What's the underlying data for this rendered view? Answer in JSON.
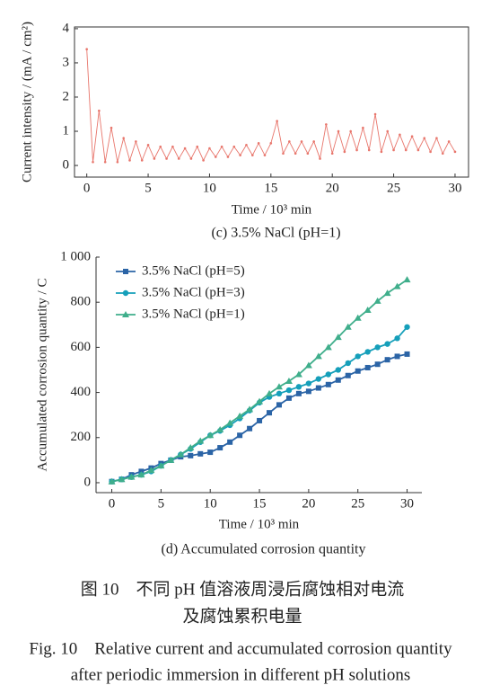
{
  "chart_data": [
    {
      "type": "scatter-line",
      "x_label": "Time / 10³ min",
      "y_label": "Current intensity / (mA / cm²)",
      "caption": "(c) 3.5% NaCl (pH=1)",
      "xlim": [
        -1,
        31.1
      ],
      "ylim": [
        -0.34,
        4.05
      ],
      "xticks": [
        0,
        5,
        10,
        15,
        20,
        25,
        30
      ],
      "yticks": [
        0,
        1,
        2,
        3,
        4
      ],
      "box": true,
      "series": [
        {
          "color": "#e8766c",
          "x": [
            0,
            0.5,
            1,
            1.5,
            2,
            2.5,
            3,
            3.5,
            4,
            4.5,
            5,
            5.5,
            6,
            6.5,
            7,
            7.5,
            8,
            8.5,
            9,
            9.5,
            10,
            10.5,
            11,
            11.5,
            12,
            12.5,
            13,
            13.5,
            14,
            14.5,
            15,
            15.5,
            16,
            16.5,
            17,
            17.5,
            18,
            18.5,
            19,
            19.5,
            20,
            20.5,
            21,
            21.5,
            22,
            22.5,
            23,
            23.5,
            24,
            24.5,
            25,
            25.5,
            26,
            26.5,
            27,
            27.5,
            28,
            28.5,
            29,
            29.5,
            30
          ],
          "values": [
            3.4,
            0.1,
            1.6,
            0.1,
            1.1,
            0.1,
            0.8,
            0.15,
            0.7,
            0.15,
            0.6,
            0.2,
            0.55,
            0.2,
            0.55,
            0.2,
            0.5,
            0.2,
            0.55,
            0.15,
            0.5,
            0.25,
            0.55,
            0.25,
            0.55,
            0.3,
            0.6,
            0.3,
            0.65,
            0.3,
            0.65,
            1.3,
            0.35,
            0.7,
            0.35,
            0.7,
            0.35,
            0.7,
            0.2,
            1.2,
            0.35,
            1.0,
            0.4,
            1.0,
            0.45,
            1.1,
            0.45,
            1.5,
            0.4,
            1.0,
            0.45,
            0.9,
            0.45,
            0.85,
            0.45,
            0.8,
            0.4,
            0.8,
            0.35,
            0.7,
            0.4
          ]
        }
      ]
    },
    {
      "type": "line",
      "x_label": "Time / 10³ min",
      "y_label": "Accumulated corrosion quantity / C",
      "caption": "(d) Accumulated corrosion quantity",
      "xlim": [
        -1.6,
        31.5
      ],
      "ylim": [
        -44,
        1000
      ],
      "xticks": [
        0,
        5,
        10,
        15,
        20,
        25,
        30
      ],
      "yticks": [
        0,
        200,
        400,
        600,
        800,
        {
          "value": 1000,
          "label": "1 000"
        }
      ],
      "legend": "upper-left",
      "x": [
        0,
        1,
        2,
        3,
        4,
        5,
        6,
        7,
        8,
        9,
        10,
        11,
        12,
        13,
        14,
        15,
        16,
        17,
        18,
        19,
        20,
        21,
        22,
        23,
        24,
        25,
        26,
        27,
        28,
        29,
        30
      ],
      "series": [
        {
          "name": "3.5% NaCl (pH=5)",
          "color": "#2b64a6",
          "marker": "square",
          "values": [
            5,
            15,
            35,
            50,
            65,
            85,
            100,
            115,
            120,
            128,
            135,
            155,
            180,
            210,
            240,
            275,
            310,
            345,
            375,
            395,
            405,
            420,
            435,
            455,
            475,
            495,
            510,
            525,
            545,
            560,
            570
          ]
        },
        {
          "name": "3.5% NaCl (pH=3)",
          "color": "#159fba",
          "marker": "circle",
          "values": [
            5,
            15,
            25,
            35,
            50,
            75,
            100,
            125,
            150,
            180,
            210,
            230,
            255,
            285,
            320,
            355,
            380,
            395,
            410,
            425,
            440,
            460,
            480,
            500,
            530,
            560,
            580,
            600,
            615,
            640,
            690
          ]
        },
        {
          "name": "3.5% NaCl (pH=1)",
          "color": "#3fae8b",
          "marker": "triangle",
          "values": [
            5,
            15,
            25,
            35,
            55,
            75,
            100,
            125,
            155,
            185,
            210,
            235,
            265,
            295,
            325,
            360,
            395,
            425,
            450,
            480,
            520,
            560,
            600,
            645,
            690,
            730,
            765,
            805,
            840,
            870,
            900
          ]
        }
      ]
    }
  ],
  "figure_caption_zh": [
    "图 10　不同 pH 值溶液周浸后腐蚀相对电流",
    "及腐蚀累积电量"
  ],
  "figure_caption_en": [
    "Fig. 10　Relative current and accumulated corrosion quantity",
    "after periodic immersion in different pH solutions"
  ]
}
